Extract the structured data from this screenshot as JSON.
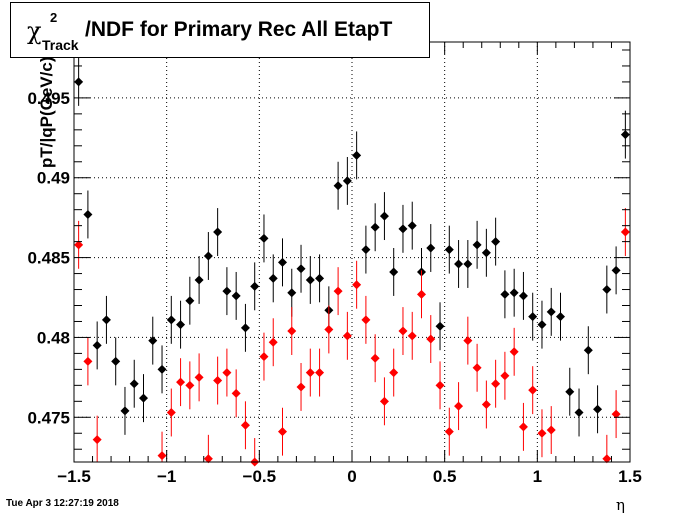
{
  "chart_data": {
    "type": "scatter",
    "title_chi": "χ",
    "title_sup": "2",
    "title_sub": "Track",
    "title_main": "/NDF for Primary Rec All EtapT",
    "xlabel": "η",
    "ylabel": "pT/|qP(GeV/c)",
    "xlim": [
      -1.5,
      1.5
    ],
    "ylim": [
      0.4722,
      0.4985
    ],
    "grid": true,
    "x_ticks": [
      {
        "v": -1.5,
        "label": "−1.5"
      },
      {
        "v": -1,
        "label": "−1"
      },
      {
        "v": -0.5,
        "label": "−0.5"
      },
      {
        "v": 0,
        "label": "0"
      },
      {
        "v": 0.5,
        "label": "0.5"
      },
      {
        "v": 1,
        "label": "1"
      },
      {
        "v": 1.5,
        "label": "1.5"
      }
    ],
    "y_ticks": [
      {
        "v": 0.475,
        "label": "0.475"
      },
      {
        "v": 0.48,
        "label": "0.48"
      },
      {
        "v": 0.485,
        "label": "0.485"
      },
      {
        "v": 0.49,
        "label": "0.49"
      },
      {
        "v": 0.495,
        "label": "0.495"
      }
    ],
    "series": [
      {
        "color": "#000000",
        "points": [
          [
            -1.475,
            0.496,
            0.0015
          ],
          [
            -1.425,
            0.4877,
            0.0015
          ],
          [
            -1.375,
            0.4795,
            0.0015
          ],
          [
            -1.325,
            0.4811,
            0.0015
          ],
          [
            -1.275,
            0.4785,
            0.0015
          ],
          [
            -1.225,
            0.4754,
            0.0015
          ],
          [
            -1.175,
            0.4771,
            0.0015
          ],
          [
            -1.125,
            0.4762,
            0.0015
          ],
          [
            -1.075,
            0.4798,
            0.0015
          ],
          [
            -1.025,
            0.478,
            0.0015
          ],
          [
            -0.975,
            0.4811,
            0.0015
          ],
          [
            -0.925,
            0.4808,
            0.0015
          ],
          [
            -0.875,
            0.4823,
            0.0015
          ],
          [
            -0.825,
            0.4836,
            0.0015
          ],
          [
            -0.775,
            0.4851,
            0.0015
          ],
          [
            -0.725,
            0.4866,
            0.0015
          ],
          [
            -0.675,
            0.4829,
            0.0015
          ],
          [
            -0.625,
            0.4826,
            0.0015
          ],
          [
            -0.575,
            0.4806,
            0.0015
          ],
          [
            -0.525,
            0.4832,
            0.0015
          ],
          [
            -0.475,
            0.4862,
            0.0015
          ],
          [
            -0.425,
            0.4837,
            0.0015
          ],
          [
            -0.375,
            0.4847,
            0.0015
          ],
          [
            -0.325,
            0.4828,
            0.0015
          ],
          [
            -0.275,
            0.4843,
            0.0015
          ],
          [
            -0.225,
            0.4836,
            0.0015
          ],
          [
            -0.175,
            0.4837,
            0.0015
          ],
          [
            -0.125,
            0.4817,
            0.0015
          ],
          [
            -0.075,
            0.4895,
            0.0015
          ],
          [
            -0.025,
            0.4898,
            0.0015
          ],
          [
            0.025,
            0.4914,
            0.0015
          ],
          [
            0.075,
            0.4855,
            0.0015
          ],
          [
            0.125,
            0.4869,
            0.0015
          ],
          [
            0.175,
            0.4876,
            0.0015
          ],
          [
            0.225,
            0.4841,
            0.0015
          ],
          [
            0.275,
            0.4868,
            0.0015
          ],
          [
            0.325,
            0.487,
            0.0015
          ],
          [
            0.375,
            0.4841,
            0.0015
          ],
          [
            0.425,
            0.4856,
            0.0015
          ],
          [
            0.475,
            0.4807,
            0.0015
          ],
          [
            0.525,
            0.4855,
            0.0015
          ],
          [
            0.575,
            0.4846,
            0.0015
          ],
          [
            0.625,
            0.4846,
            0.0015
          ],
          [
            0.675,
            0.4858,
            0.0015
          ],
          [
            0.725,
            0.4853,
            0.0015
          ],
          [
            0.775,
            0.486,
            0.0015
          ],
          [
            0.825,
            0.4827,
            0.0015
          ],
          [
            0.875,
            0.4828,
            0.0015
          ],
          [
            0.925,
            0.4826,
            0.0015
          ],
          [
            0.975,
            0.4813,
            0.0015
          ],
          [
            1.025,
            0.4808,
            0.0015
          ],
          [
            1.075,
            0.4816,
            0.0015
          ],
          [
            1.125,
            0.4813,
            0.0015
          ],
          [
            1.175,
            0.4766,
            0.0015
          ],
          [
            1.225,
            0.4753,
            0.0015
          ],
          [
            1.275,
            0.4792,
            0.0015
          ],
          [
            1.325,
            0.4755,
            0.0015
          ],
          [
            1.375,
            0.483,
            0.0015
          ],
          [
            1.425,
            0.4842,
            0.0015
          ],
          [
            1.475,
            0.4927,
            0.0015
          ]
        ]
      },
      {
        "color": "#ff0000",
        "points": [
          [
            -1.475,
            0.4858,
            0.0015
          ],
          [
            -1.425,
            0.4785,
            0.0015
          ],
          [
            -1.375,
            0.4736,
            0.0015
          ],
          [
            -1.025,
            0.4726,
            0.0015
          ],
          [
            -0.975,
            0.4753,
            0.0015
          ],
          [
            -0.925,
            0.4772,
            0.0015
          ],
          [
            -0.875,
            0.477,
            0.0015
          ],
          [
            -0.825,
            0.4775,
            0.0015
          ],
          [
            -0.775,
            0.4724,
            0.0015
          ],
          [
            -0.725,
            0.4773,
            0.0015
          ],
          [
            -0.675,
            0.4778,
            0.0015
          ],
          [
            -0.625,
            0.4765,
            0.0015
          ],
          [
            -0.575,
            0.4745,
            0.0015
          ],
          [
            -0.525,
            0.4722,
            0.0015
          ],
          [
            -0.475,
            0.4788,
            0.0015
          ],
          [
            -0.425,
            0.4797,
            0.0015
          ],
          [
            -0.375,
            0.4741,
            0.0015
          ],
          [
            -0.325,
            0.4804,
            0.0015
          ],
          [
            -0.275,
            0.4769,
            0.0015
          ],
          [
            -0.225,
            0.4778,
            0.0015
          ],
          [
            -0.175,
            0.4778,
            0.0015
          ],
          [
            -0.125,
            0.4805,
            0.0015
          ],
          [
            -0.075,
            0.4829,
            0.0015
          ],
          [
            -0.025,
            0.4801,
            0.0015
          ],
          [
            0.025,
            0.4833,
            0.0015
          ],
          [
            0.075,
            0.4811,
            0.0015
          ],
          [
            0.125,
            0.4787,
            0.0015
          ],
          [
            0.175,
            0.476,
            0.0015
          ],
          [
            0.225,
            0.4778,
            0.0015
          ],
          [
            0.275,
            0.4804,
            0.0015
          ],
          [
            0.325,
            0.4801,
            0.0015
          ],
          [
            0.375,
            0.4827,
            0.0015
          ],
          [
            0.425,
            0.4799,
            0.0015
          ],
          [
            0.475,
            0.477,
            0.0015
          ],
          [
            0.525,
            0.4741,
            0.0015
          ],
          [
            0.575,
            0.4757,
            0.0015
          ],
          [
            0.625,
            0.4798,
            0.0015
          ],
          [
            0.675,
            0.4781,
            0.0015
          ],
          [
            0.725,
            0.4758,
            0.0015
          ],
          [
            0.775,
            0.4771,
            0.0015
          ],
          [
            0.825,
            0.4776,
            0.0015
          ],
          [
            0.875,
            0.4791,
            0.0015
          ],
          [
            0.925,
            0.4744,
            0.0015
          ],
          [
            0.975,
            0.4767,
            0.0015
          ],
          [
            1.025,
            0.474,
            0.0015
          ],
          [
            1.075,
            0.4742,
            0.0015
          ],
          [
            1.375,
            0.4724,
            0.0015
          ],
          [
            1.425,
            0.4752,
            0.0015
          ],
          [
            1.475,
            0.4866,
            0.0015
          ]
        ]
      }
    ]
  },
  "footer": {
    "timestamp": "Tue Apr  3 12:27:19 2018"
  }
}
